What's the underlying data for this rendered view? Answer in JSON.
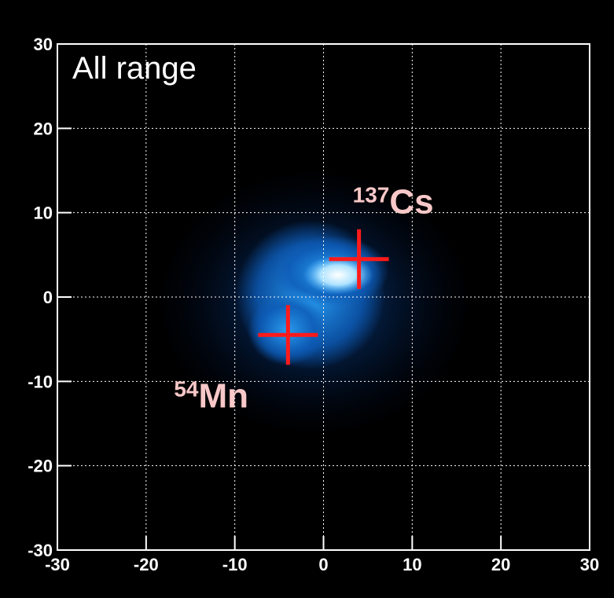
{
  "chart_data": {
    "type": "scatter",
    "annotation": "All range",
    "xlim": [
      -30,
      30
    ],
    "ylim": [
      -30,
      30
    ],
    "xticks": [
      -30,
      -20,
      -10,
      0,
      10,
      20,
      30
    ],
    "yticks": [
      -30,
      -20,
      -10,
      0,
      10,
      20,
      30
    ],
    "grid": true,
    "marker_color": "#ff1a1a",
    "label_color": "#f8c8c8",
    "points": [
      {
        "x": 4,
        "y": 4.5,
        "superscript": "137",
        "label": "Cs"
      },
      {
        "x": -4,
        "y": -4.5,
        "superscript": "54",
        "label": "Mn"
      }
    ]
  }
}
